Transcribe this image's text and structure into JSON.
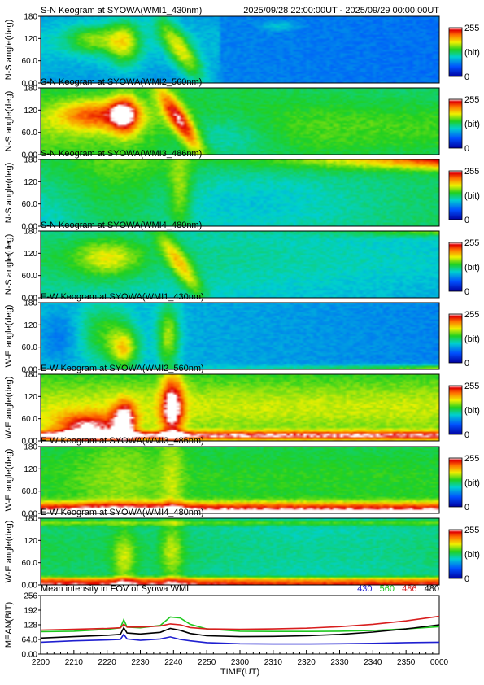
{
  "header": {
    "time_range": "2025/09/28 22:00:00UT - 2025/09/29 00:00:00UT"
  },
  "panels": [
    {
      "title": "S-N Keogram at SYOWA(WMI1_430nm)",
      "ylabel": "N-S angle(deg)",
      "profile": "wmi1_ns"
    },
    {
      "title": "S-N Keogram at SYOWA(WMI2_560nm)",
      "ylabel": "N-S angle(deg)",
      "profile": "wmi2_ns"
    },
    {
      "title": "S-N Keogram at SYOWA(WMI3_486nm)",
      "ylabel": "N-S angle(deg)",
      "profile": "wmi3_ns"
    },
    {
      "title": "S-N Keogram at SYOWA(WMI4_480nm)",
      "ylabel": "N-S angle(deg)",
      "profile": "wmi4_ns"
    },
    {
      "title": "E-W Keogram at SYOWA(WMI1_430nm)",
      "ylabel": "W-E angle(deg)",
      "profile": "wmi1_ew"
    },
    {
      "title": "E-W Keogram at SYOWA(WMI2_560nm)",
      "ylabel": "W-E angle(deg)",
      "profile": "wmi2_ew"
    },
    {
      "title": "E-W Keogram at SYOWA(WMI3_486nm)",
      "ylabel": "W-E angle(deg)",
      "profile": "wmi3_ew"
    },
    {
      "title": "E-W Keogram at SYOWA(WMI4_480nm)",
      "ylabel": "W-E angle(deg)",
      "profile": "wmi4_ew"
    }
  ],
  "keogram_axis": {
    "yticks": [
      "0.00",
      "60.0",
      "120",
      "180"
    ],
    "ylim": [
      0,
      180
    ]
  },
  "colorbar": {
    "max_label": "255",
    "unit_label": "(bit)",
    "min_label": "0"
  },
  "chart_data": {
    "type": "line",
    "title": "Mean intensity in FOV of Syowa WMI",
    "xlabel": "TIME(UT)",
    "ylabel": "MEAN(BIT)",
    "ylim": [
      0,
      256
    ],
    "yticks": [
      "0.00",
      "64.0",
      "128",
      "192",
      "256"
    ],
    "xticks": [
      "2200",
      "2210",
      "2220",
      "2230",
      "2240",
      "2250",
      "2300",
      "2310",
      "2320",
      "2330",
      "2340",
      "2350",
      "0000"
    ],
    "x_minutes": [
      0,
      10,
      20,
      24,
      25,
      26,
      30,
      36,
      39,
      42,
      45,
      50,
      60,
      70,
      80,
      90,
      100,
      110,
      120
    ],
    "series": [
      {
        "name": "430",
        "color": "#1f1fd0",
        "values": [
          52,
          58,
          62,
          64,
          86,
          66,
          60,
          66,
          75,
          64,
          58,
          50,
          45,
          44,
          44,
          45,
          47,
          50,
          52
        ]
      },
      {
        "name": "560",
        "color": "#1ec81e",
        "values": [
          98,
          100,
          108,
          115,
          150,
          118,
          115,
          125,
          162,
          158,
          130,
          110,
          100,
          99,
          99,
          100,
          103,
          110,
          120
        ]
      },
      {
        "name": "486",
        "color": "#d81e1e",
        "values": [
          105,
          108,
          112,
          115,
          130,
          118,
          118,
          123,
          132,
          128,
          116,
          110,
          108,
          110,
          113,
          120,
          130,
          145,
          165
        ]
      },
      {
        "name": "480",
        "color": "#000000",
        "values": [
          70,
          76,
          82,
          86,
          115,
          92,
          88,
          95,
          112,
          104,
          90,
          80,
          76,
          77,
          80,
          86,
          96,
          110,
          128
        ]
      }
    ]
  }
}
